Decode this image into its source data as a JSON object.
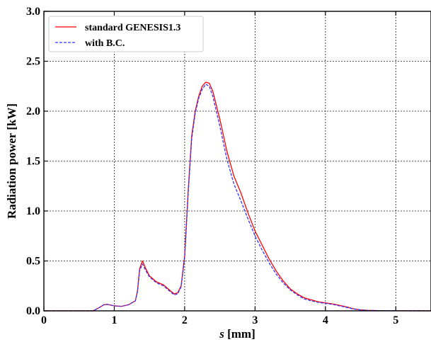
{
  "chart_data": {
    "type": "line",
    "title": "",
    "xlabel_italic": "s",
    "xlabel_unit": " [mm]",
    "ylabel": "Radiation power [kW]",
    "xlim": [
      0,
      5.5
    ],
    "ylim": [
      0,
      3.0
    ],
    "xticks": [
      0,
      1,
      2,
      3,
      4,
      5
    ],
    "xtick_labels": [
      "0",
      "1",
      "2",
      "3",
      "4",
      "5"
    ],
    "yticks": [
      0,
      0.5,
      1.0,
      1.5,
      2.0,
      2.5,
      3.0
    ],
    "ytick_labels": [
      "0.0",
      "0.5",
      "1.0",
      "1.5",
      "2.0",
      "2.5",
      "3.0"
    ],
    "grid": true,
    "legend_position": "top-left",
    "series": [
      {
        "name": "standard GENESIS1.3",
        "color": "#ff0000",
        "style": "solid",
        "x": [
          0,
          0.7,
          0.78,
          0.85,
          0.9,
          1.0,
          1.1,
          1.2,
          1.25,
          1.3,
          1.33,
          1.36,
          1.4,
          1.45,
          1.5,
          1.6,
          1.7,
          1.8,
          1.85,
          1.9,
          1.95,
          2.0,
          2.05,
          2.1,
          2.15,
          2.2,
          2.25,
          2.3,
          2.35,
          2.4,
          2.5,
          2.6,
          2.7,
          2.8,
          2.9,
          3.0,
          3.1,
          3.2,
          3.3,
          3.4,
          3.5,
          3.6,
          3.7,
          3.8,
          3.9,
          4.0,
          4.1,
          4.2,
          4.3,
          4.4,
          4.5,
          4.6,
          4.8,
          5.0,
          5.5
        ],
        "y": [
          0,
          0,
          0.03,
          0.06,
          0.065,
          0.05,
          0.045,
          0.06,
          0.08,
          0.1,
          0.2,
          0.42,
          0.5,
          0.42,
          0.35,
          0.29,
          0.26,
          0.2,
          0.17,
          0.18,
          0.25,
          0.55,
          1.2,
          1.75,
          2.0,
          2.15,
          2.25,
          2.29,
          2.28,
          2.2,
          1.92,
          1.6,
          1.35,
          1.18,
          0.98,
          0.8,
          0.66,
          0.52,
          0.4,
          0.3,
          0.22,
          0.17,
          0.13,
          0.11,
          0.09,
          0.08,
          0.07,
          0.055,
          0.04,
          0.02,
          0.01,
          0.005,
          0.002,
          0.001,
          0
        ]
      },
      {
        "name": "with B.C.",
        "color": "#3333ff",
        "style": "dashed",
        "x": [
          0,
          0.7,
          0.78,
          0.85,
          0.9,
          1.0,
          1.1,
          1.2,
          1.25,
          1.3,
          1.33,
          1.36,
          1.4,
          1.45,
          1.5,
          1.6,
          1.7,
          1.8,
          1.85,
          1.9,
          1.95,
          2.0,
          2.05,
          2.1,
          2.15,
          2.2,
          2.25,
          2.3,
          2.35,
          2.4,
          2.5,
          2.6,
          2.7,
          2.8,
          2.9,
          3.0,
          3.1,
          3.2,
          3.3,
          3.4,
          3.5,
          3.6,
          3.7,
          3.8,
          3.9,
          4.0,
          4.1,
          4.2,
          4.3,
          4.4,
          4.5,
          4.6,
          4.8,
          5.0,
          5.5
        ],
        "y": [
          0,
          0,
          0.03,
          0.06,
          0.065,
          0.05,
          0.045,
          0.06,
          0.08,
          0.1,
          0.19,
          0.4,
          0.47,
          0.4,
          0.34,
          0.28,
          0.25,
          0.19,
          0.16,
          0.17,
          0.24,
          0.53,
          1.17,
          1.72,
          1.98,
          2.13,
          2.22,
          2.27,
          2.25,
          2.15,
          1.85,
          1.52,
          1.27,
          1.1,
          0.92,
          0.75,
          0.61,
          0.48,
          0.37,
          0.28,
          0.21,
          0.16,
          0.12,
          0.1,
          0.085,
          0.075,
          0.065,
          0.05,
          0.035,
          0.018,
          0.009,
          0.004,
          0.002,
          0.001,
          0
        ]
      }
    ]
  }
}
